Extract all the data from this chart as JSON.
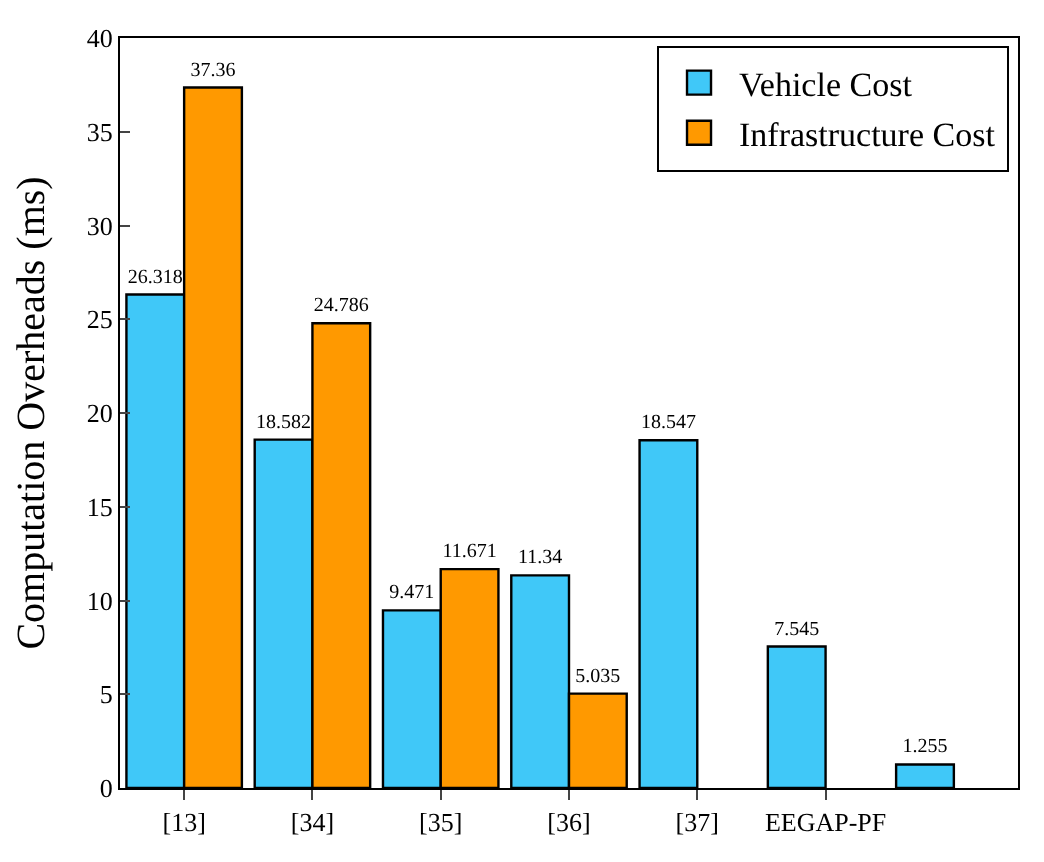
{
  "chart_data": {
    "type": "bar",
    "ylabel": "Computation Overheads (ms)",
    "categories": [
      "[13]",
      "[34]",
      "[35]",
      "[36]",
      "[37]",
      "EEGAP-PF",
      null
    ],
    "series": [
      {
        "name": "Vehicle Cost",
        "color": "#40c8f8",
        "values": [
          26.318,
          18.582,
          9.471,
          11.34,
          18.547,
          7.545,
          1.255
        ]
      },
      {
        "name": "Infrastructure Cost",
        "color": "#ff9900",
        "values": [
          37.36,
          24.786,
          11.671,
          5.035,
          null,
          null,
          null
        ]
      }
    ],
    "ylim": [
      0,
      40
    ],
    "yticks": [
      0,
      5,
      10,
      15,
      20,
      25,
      30,
      35,
      40
    ],
    "legend": "top right",
    "data_labels": true
  }
}
